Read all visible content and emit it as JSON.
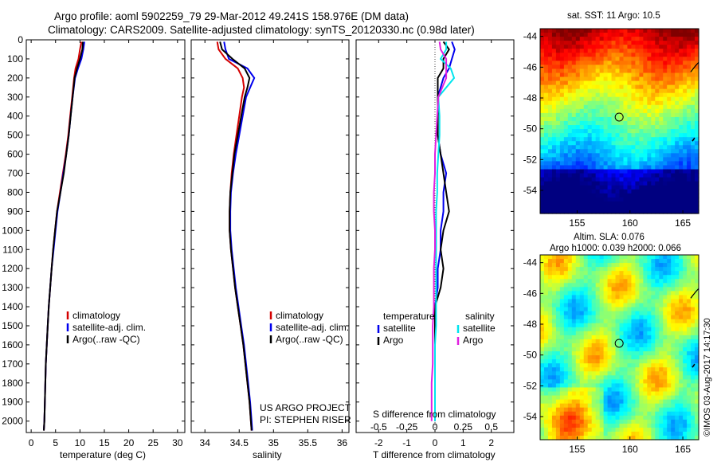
{
  "header": {
    "title_line1": "Argo profile: aoml 5902259_79 29-Mar-2012 49.241S 158.976E (DM data)",
    "title_line2": "Climatology: CARS2009. Satellite-adjusted climatology: synTS_20120330.nc (0.98d later)"
  },
  "colors": {
    "climatology": "#d40000",
    "satellite": "#0000ee",
    "argo": "#000000",
    "satellite_sal": "#00e5ee",
    "argo_sal": "#e020e0"
  },
  "chart_data": [
    {
      "type": "line",
      "name": "temperature",
      "xlabel": "temperature (deg C)",
      "xlim": [
        -1,
        31.5
      ],
      "xticks": [
        "0",
        "5",
        "10",
        "15",
        "20",
        "25",
        "30"
      ],
      "ylim": [
        0,
        2060
      ],
      "yticks": [
        "0",
        "100",
        "200",
        "300",
        "400",
        "500",
        "600",
        "700",
        "800",
        "900",
        "1000",
        "1100",
        "1200",
        "1300",
        "1400",
        "1500",
        "1600",
        "1700",
        "1800",
        "1900",
        "2000"
      ],
      "legend": [
        "climatology",
        "satellite-adj. clim.",
        "Argo(..raw -QC)"
      ],
      "series": [
        {
          "name": "climatology",
          "depth": [
            10,
            50,
            100,
            150,
            200,
            300,
            400,
            500,
            600,
            700,
            800,
            900,
            1000,
            1100,
            1200,
            1300,
            1400,
            1500,
            1600,
            1700,
            1800,
            1900,
            2000,
            2050
          ],
          "values": [
            10.3,
            10.0,
            9.7,
            9.1,
            8.8,
            8.4,
            8.0,
            7.6,
            7.1,
            6.5,
            5.9,
            5.3,
            4.9,
            4.5,
            4.2,
            3.9,
            3.6,
            3.4,
            3.2,
            3.0,
            2.9,
            2.8,
            2.7,
            2.6
          ]
        },
        {
          "name": "satellite-adj. clim.",
          "depth": [
            10,
            50,
            100,
            150,
            200,
            300,
            400,
            500,
            600,
            700,
            800,
            900,
            1000,
            1100,
            1200,
            1300,
            1400,
            1500,
            1600,
            1700,
            1800,
            1900,
            2000,
            2050
          ],
          "values": [
            10.9,
            10.7,
            10.3,
            9.6,
            9.0,
            8.5,
            8.1,
            7.7,
            7.2,
            6.6,
            6.0,
            5.4,
            5.0,
            4.6,
            4.2,
            3.9,
            3.6,
            3.4,
            3.2,
            3.0,
            2.9,
            2.8,
            2.7,
            2.6
          ]
        },
        {
          "name": "Argo",
          "depth": [
            10,
            50,
            100,
            150,
            200,
            300,
            400,
            500,
            600,
            700,
            800,
            900,
            1000,
            1100,
            1200,
            1300,
            1400,
            1500,
            1600,
            1700,
            1800,
            1900,
            2000,
            2050
          ],
          "values": [
            10.6,
            10.5,
            10.0,
            9.4,
            8.9,
            8.5,
            8.1,
            7.7,
            7.2,
            6.7,
            6.0,
            5.3,
            4.9,
            4.5,
            4.2,
            3.9,
            3.6,
            3.4,
            3.2,
            3.0,
            2.9,
            2.8,
            2.7,
            2.6
          ]
        }
      ]
    },
    {
      "type": "line",
      "name": "salinity",
      "xlabel": "salinity",
      "xlim": [
        33.8,
        36.1
      ],
      "xticks": [
        "34",
        "34.5",
        "35",
        "35.5",
        "36"
      ],
      "ylim": [
        0,
        2060
      ],
      "legend": [
        "climatology",
        "satellite-adj. clim.",
        "Argo(..raw -QC)"
      ],
      "annotation": [
        "US ARGO PROJECT",
        "PI: STEPHEN RISER"
      ],
      "series": [
        {
          "name": "climatology",
          "depth": [
            10,
            50,
            100,
            150,
            200,
            250,
            300,
            400,
            500,
            600,
            700,
            800,
            900,
            1000,
            1100,
            1200,
            1300,
            1400,
            1500,
            1600,
            1700,
            1800,
            1900,
            2000,
            2050
          ],
          "values": [
            34.18,
            34.2,
            34.3,
            34.48,
            34.55,
            34.57,
            34.54,
            34.5,
            34.46,
            34.42,
            34.39,
            34.37,
            34.36,
            34.36,
            34.38,
            34.41,
            34.44,
            34.48,
            34.52,
            34.56,
            34.59,
            34.62,
            34.65,
            34.67,
            34.68
          ]
        },
        {
          "name": "satellite-adj. clim.",
          "depth": [
            10,
            50,
            100,
            150,
            200,
            250,
            300,
            400,
            500,
            600,
            700,
            800,
            900,
            1000,
            1100,
            1200,
            1300,
            1400,
            1500,
            1600,
            1700,
            1800,
            1900,
            2000,
            2050
          ],
          "values": [
            34.28,
            34.3,
            34.35,
            34.62,
            34.72,
            34.66,
            34.6,
            34.55,
            34.5,
            34.45,
            34.41,
            34.38,
            34.37,
            34.37,
            34.39,
            34.42,
            34.45,
            34.49,
            34.53,
            34.57,
            34.6,
            34.63,
            34.66,
            34.68,
            34.69
          ]
        },
        {
          "name": "Argo",
          "depth": [
            10,
            50,
            100,
            150,
            200,
            250,
            300,
            400,
            500,
            600,
            700,
            800,
            900,
            1000,
            1100,
            1200,
            1300,
            1400,
            1500,
            1600,
            1700,
            1800,
            1900,
            2000,
            2050
          ],
          "values": [
            34.22,
            34.25,
            34.4,
            34.58,
            34.65,
            34.62,
            34.58,
            34.53,
            34.48,
            34.43,
            34.4,
            34.37,
            34.36,
            34.36,
            34.38,
            34.41,
            34.44,
            34.48,
            34.52,
            34.56,
            34.59,
            34.62,
            34.65,
            34.67,
            34.68
          ]
        }
      ]
    },
    {
      "type": "line",
      "name": "differences",
      "xlabel": "T difference from climatology",
      "xlabel2": "S difference from climatology",
      "xlim": [
        -2.8,
        2.8
      ],
      "xticks": [
        "-2",
        "-1",
        "0",
        "1",
        "2"
      ],
      "xticks_top": [
        "-0.5",
        "-0.25",
        "0",
        "0.25",
        "0.5"
      ],
      "legend_t_title": "temperature",
      "legend_s_title": "salinity",
      "legend": [
        "satellite",
        "Argo"
      ],
      "series": [
        {
          "name": "T satellite",
          "depth": [
            10,
            50,
            100,
            150,
            200,
            300,
            400,
            500,
            600,
            700,
            800,
            900,
            1000,
            1100,
            1200,
            1300,
            1400,
            1500,
            1600,
            1700,
            1800,
            1900,
            2000
          ],
          "values": [
            0.6,
            0.7,
            0.6,
            0.5,
            0.3,
            0.1,
            0.1,
            0.1,
            0.2,
            0.4,
            0.3,
            0.3,
            0.2,
            0.2,
            0.1,
            0.1,
            0.0,
            0.0,
            0.0,
            0.0,
            0.0,
            0.0,
            0.0
          ]
        },
        {
          "name": "T Argo",
          "depth": [
            10,
            50,
            100,
            150,
            200,
            300,
            400,
            500,
            600,
            700,
            800,
            900,
            1000,
            1100,
            1200,
            1300,
            1400,
            1500,
            1600,
            1700,
            1800,
            1900,
            2000
          ],
          "values": [
            0.3,
            0.5,
            0.3,
            0.3,
            0.1,
            0.1,
            0.1,
            0.1,
            0.2,
            0.3,
            0.4,
            0.5,
            0.3,
            0.2,
            0.3,
            0.2,
            0.0,
            0.0,
            0.0,
            0.0,
            0.0,
            0.0,
            0.0
          ]
        },
        {
          "name": "S satellite",
          "depth": [
            10,
            50,
            100,
            150,
            200,
            300,
            400,
            500,
            600,
            700,
            800,
            900,
            1000,
            1100,
            1200,
            1300,
            1400,
            1500,
            1600,
            1700,
            1800,
            1900,
            2000
          ],
          "values": [
            0.1,
            0.1,
            0.05,
            0.14,
            0.17,
            0.03,
            0.04,
            0.04,
            0.03,
            0.02,
            0.02,
            0.01,
            0.01,
            0.01,
            0.01,
            0.01,
            0.01,
            0.01,
            0.0,
            0.0,
            0.0,
            0.0,
            0.0
          ]
        },
        {
          "name": "S Argo",
          "depth": [
            10,
            50,
            100,
            150,
            200,
            300,
            400,
            500,
            600,
            700,
            800,
            900,
            1000,
            1100,
            1200,
            1300,
            1400,
            1500,
            1600,
            1700,
            1800,
            1900,
            2000
          ],
          "values": [
            0.04,
            0.05,
            0.1,
            0.1,
            0.1,
            0.03,
            0.02,
            0.01,
            0.0,
            0.0,
            -0.01,
            -0.01,
            0.0,
            0.0,
            -0.01,
            -0.01,
            -0.01,
            -0.02,
            -0.02,
            -0.02,
            -0.03,
            -0.03,
            -0.03
          ]
        }
      ]
    },
    {
      "type": "heatmap",
      "name": "sst-map",
      "title": "sat. SST: 11 Argo: 10.5",
      "xticks": [
        "155",
        "160",
        "165"
      ],
      "yticks": [
        "-44",
        "-46",
        "-48",
        "-50",
        "-52",
        "-54"
      ],
      "xlim": [
        151.5,
        166.5
      ],
      "ylim": [
        -55.5,
        -43.5
      ],
      "float_lon": 158.976,
      "float_lat": -49.241
    },
    {
      "type": "heatmap",
      "name": "sla-map",
      "title_line1": "Altim. SLA: 0.076",
      "title_line2": "Argo h1000: 0.039 h2000: 0.066",
      "xticks": [
        "155",
        "160",
        "165"
      ],
      "yticks": [
        "-44",
        "-46",
        "-48",
        "-50",
        "-52",
        "-54"
      ],
      "xlim": [
        151.5,
        166.5
      ],
      "ylim": [
        -55.5,
        -43.5
      ],
      "float_lon": 158.976,
      "float_lat": -49.241
    }
  ],
  "footer": {
    "stamp": "©IMOS 03-Aug-2017 14:17:30"
  }
}
